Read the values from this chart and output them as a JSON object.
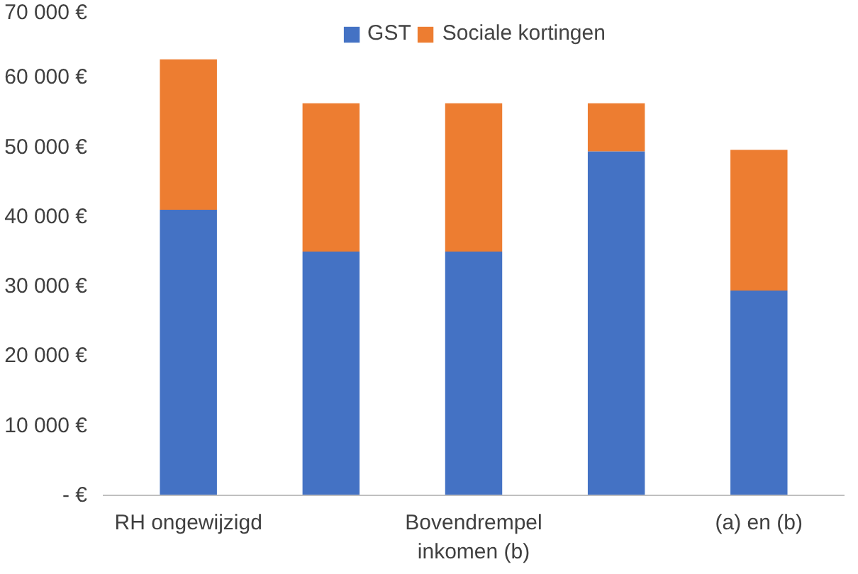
{
  "chart_data": {
    "type": "bar",
    "stacked": true,
    "categories": [
      "RH ongewijzigd",
      null,
      "Bovendrempel\ninkomen (b)",
      null,
      "(a) en (b)"
    ],
    "series": [
      {
        "name": "GST",
        "color": "#4472c4",
        "values": [
          41000,
          35000,
          35000,
          49400,
          29400
        ]
      },
      {
        "name": "Sociale kortingen",
        "color": "#ed7d31",
        "values": [
          21600,
          21300,
          21300,
          6900,
          20200
        ]
      }
    ],
    "ylim": [
      0,
      70000
    ],
    "yticks": [
      {
        "value": 0,
        "label": "- €"
      },
      {
        "value": 10000,
        "label": "10 000 €"
      },
      {
        "value": 20000,
        "label": "20 000 €"
      },
      {
        "value": 30000,
        "label": "30 000 €"
      },
      {
        "value": 40000,
        "label": "40 000 €"
      },
      {
        "value": 50000,
        "label": "50 000 €"
      },
      {
        "value": 60000,
        "label": "60 000 €"
      },
      {
        "value": 70000,
        "label": "70 000 €"
      }
    ],
    "grid": false,
    "legend": "top"
  }
}
